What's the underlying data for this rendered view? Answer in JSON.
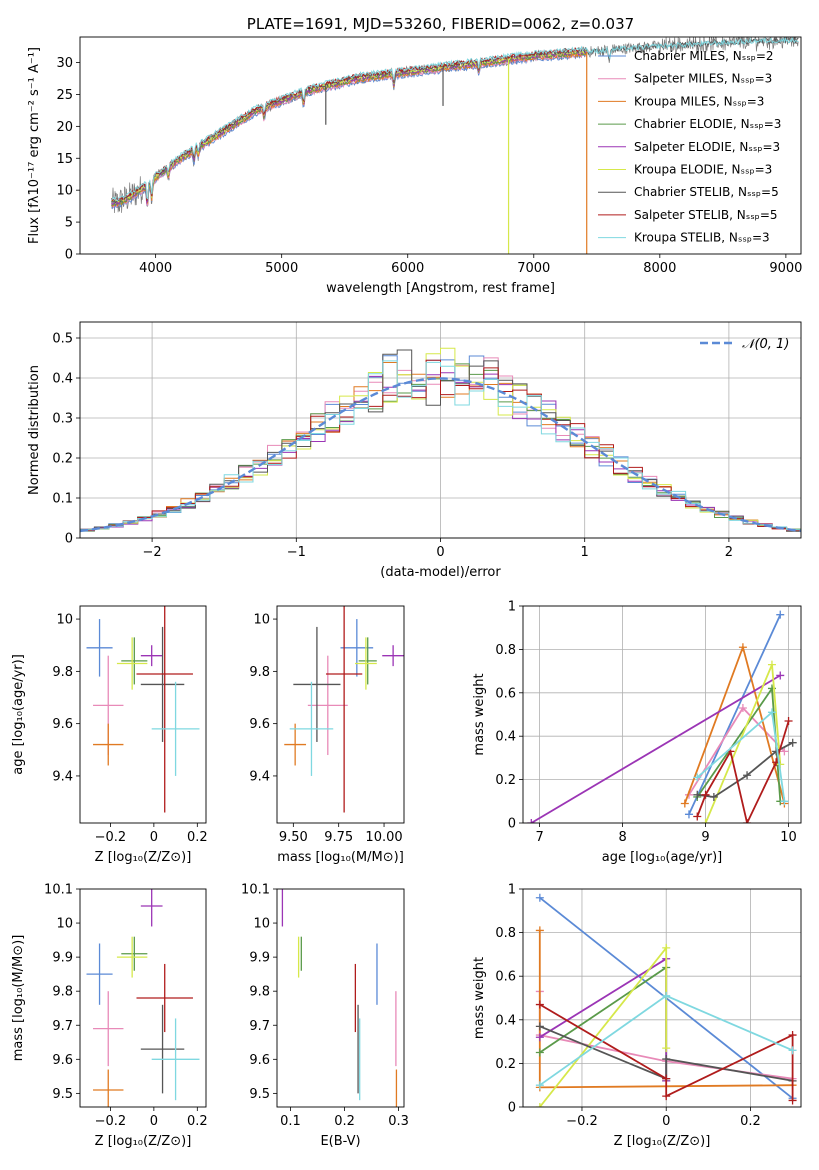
{
  "colors": {
    "chabrier_miles": "#5b8ad6",
    "salpeter_miles": "#e88ab8",
    "kroupa_miles": "#e07a22",
    "chabrier_elodie": "#5a9a4a",
    "salpeter_elodie": "#9b35b5",
    "kroupa_elodie": "#d6e84a",
    "chabrier_stelib": "#555555",
    "salpeter_stelib": "#b01c1c",
    "kroupa_stelib": "#7fd8e0"
  },
  "chart_data": [
    {
      "id": "spectrum",
      "type": "line",
      "title": "PLATE=1691, MJD=53260, FIBERID=0062, z=0.037",
      "xlabel": "wavelength [Angstrom, rest frame]",
      "ylabel": "Flux [fλ10⁻¹⁷ erg cm⁻² s⁻¹ A⁻¹]",
      "xlim": [
        3400,
        9120
      ],
      "ylim": [
        0,
        34
      ],
      "xticks": [
        4000,
        5000,
        6000,
        7000,
        8000,
        9000
      ],
      "yticks": [
        0,
        5,
        10,
        15,
        20,
        25,
        30
      ],
      "legend_position": "top-right",
      "legend": [
        {
          "label": "Chabrier MILES, Nₛₛₚ=2",
          "color_key": "chabrier_miles"
        },
        {
          "label": "Salpeter MILES, Nₛₛₚ=3",
          "color_key": "salpeter_miles"
        },
        {
          "label": "Kroupa MILES, Nₛₛₚ=3",
          "color_key": "kroupa_miles"
        },
        {
          "label": "Chabrier ELODIE, Nₛₛₚ=3",
          "color_key": "chabrier_elodie"
        },
        {
          "label": "Salpeter ELODIE, Nₛₛₚ=3",
          "color_key": "salpeter_elodie"
        },
        {
          "label": "Kroupa ELODIE, Nₛₛₚ=3",
          "color_key": "kroupa_elodie"
        },
        {
          "label": "Chabrier STELIB, Nₛₛₚ=5",
          "color_key": "chabrier_stelib"
        },
        {
          "label": "Salpeter STELIB, Nₛₛₚ=5",
          "color_key": "salpeter_stelib"
        },
        {
          "label": "Kroupa STELIB, Nₛₛₚ=3",
          "color_key": "kroupa_stelib"
        }
      ],
      "continuum": [
        [
          3700,
          8
        ],
        [
          3800,
          9
        ],
        [
          3950,
          11
        ],
        [
          4000,
          12
        ],
        [
          4200,
          15
        ],
        [
          4400,
          17.5
        ],
        [
          4600,
          20
        ],
        [
          4800,
          22.5
        ],
        [
          5000,
          24
        ],
        [
          5200,
          25.5
        ],
        [
          5400,
          26.5
        ],
        [
          5600,
          27.5
        ],
        [
          5800,
          28
        ],
        [
          6000,
          28.5
        ],
        [
          6200,
          29
        ],
        [
          6400,
          29.5
        ],
        [
          6600,
          30
        ],
        [
          6800,
          30.5
        ],
        [
          7000,
          31
        ],
        [
          7200,
          31.3
        ],
        [
          7400,
          31.6
        ],
        [
          7600,
          32
        ],
        [
          7800,
          32.3
        ],
        [
          8000,
          32.6
        ],
        [
          8200,
          32.8
        ],
        [
          8400,
          33
        ],
        [
          8600,
          33.2
        ],
        [
          8800,
          33.4
        ],
        [
          9000,
          33.5
        ]
      ],
      "data_range": [
        3650,
        9100
      ],
      "model_range": [
        3650,
        7420
      ],
      "dropouts": [
        {
          "x": 6800,
          "series": "kroupa_elodie"
        },
        {
          "x": 7420,
          "series": "kroupa_miles"
        },
        {
          "x": 5350,
          "series": "chabrier_stelib"
        },
        {
          "x": 6280,
          "series": "chabrier_stelib"
        }
      ]
    },
    {
      "id": "residuals",
      "type": "step",
      "xlabel": "(data-model)/error",
      "ylabel": "Normed distribution",
      "xlim": [
        -2.5,
        2.5
      ],
      "ylim": [
        0,
        0.54
      ],
      "xticks": [
        -2,
        -1,
        0,
        1,
        2
      ],
      "yticks": [
        0.0,
        0.1,
        0.2,
        0.3,
        0.4,
        0.5
      ],
      "grid": true,
      "bin_width": 0.1,
      "legend_position": "top-right",
      "reference": {
        "label": "𝒩(0, 1)",
        "mean": 0,
        "sigma": 1,
        "color": "#5b8ad6"
      }
    },
    {
      "id": "age_vs_Z",
      "type": "errorbar",
      "xlabel": "Z [log₁₀(Z/Z⊙)]",
      "ylabel": "age [log₁₀(age/yr)]",
      "xlim": [
        -0.34,
        0.24
      ],
      "ylim": [
        9.22,
        10.05
      ],
      "xticks": [
        -0.2,
        0.0,
        0.2
      ],
      "yticks": [
        9.4,
        9.6,
        9.8,
        10.0
      ],
      "points": [
        {
          "series": "chabrier_miles",
          "x": -0.25,
          "y": 9.89,
          "xerr": 0.06,
          "yerr": 0.11
        },
        {
          "series": "salpeter_miles",
          "x": -0.21,
          "y": 9.67,
          "xerr": 0.07,
          "yerr": 0.19
        },
        {
          "series": "kroupa_miles",
          "x": -0.21,
          "y": 9.52,
          "xerr": 0.07,
          "yerr": 0.08
        },
        {
          "series": "chabrier_elodie",
          "x": -0.09,
          "y": 9.84,
          "xerr": 0.06,
          "yerr": 0.09
        },
        {
          "series": "salpeter_elodie",
          "x": -0.01,
          "y": 9.86,
          "xerr": 0.05,
          "yerr": 0.04
        },
        {
          "series": "kroupa_elodie",
          "x": -0.1,
          "y": 9.83,
          "xerr": 0.07,
          "yerr": 0.1
        },
        {
          "series": "chabrier_stelib",
          "x": 0.04,
          "y": 9.75,
          "xerr": 0.1,
          "yerr": 0.22
        },
        {
          "series": "salpeter_stelib",
          "x": 0.05,
          "y": 9.79,
          "xerr": 0.13,
          "yerr": 0.53
        },
        {
          "series": "kroupa_stelib",
          "x": 0.1,
          "y": 9.58,
          "xerr": 0.11,
          "yerr": 0.18
        }
      ]
    },
    {
      "id": "age_vs_mass",
      "type": "errorbar",
      "xlabel": "mass [log₁₀(M/M⊙)]",
      "xlim": [
        9.41,
        10.11
      ],
      "ylim": [
        9.22,
        10.05
      ],
      "xticks": [
        9.5,
        9.75,
        10.0
      ],
      "xticklabels": [
        "9.50",
        "9.75",
        "10.00"
      ],
      "yticks": [
        9.4,
        9.6,
        9.8,
        10.0
      ],
      "points": [
        {
          "series": "chabrier_miles",
          "x": 9.85,
          "y": 9.89,
          "xerr": 0.09,
          "yerr": 0.11
        },
        {
          "series": "salpeter_miles",
          "x": 9.69,
          "y": 9.67,
          "xerr": 0.11,
          "yerr": 0.19
        },
        {
          "series": "kroupa_miles",
          "x": 9.51,
          "y": 9.52,
          "xerr": 0.06,
          "yerr": 0.08
        },
        {
          "series": "chabrier_elodie",
          "x": 9.91,
          "y": 9.84,
          "xerr": 0.05,
          "yerr": 0.09
        },
        {
          "series": "salpeter_elodie",
          "x": 10.05,
          "y": 9.86,
          "xerr": 0.06,
          "yerr": 0.04
        },
        {
          "series": "kroupa_elodie",
          "x": 9.9,
          "y": 9.83,
          "xerr": 0.06,
          "yerr": 0.1
        },
        {
          "series": "chabrier_stelib",
          "x": 9.63,
          "y": 9.75,
          "xerr": 0.13,
          "yerr": 0.22
        },
        {
          "series": "salpeter_stelib",
          "x": 9.78,
          "y": 9.79,
          "xerr": 0.1,
          "yerr": 0.53
        },
        {
          "series": "kroupa_stelib",
          "x": 9.6,
          "y": 9.58,
          "xerr": 0.12,
          "yerr": 0.18
        }
      ]
    },
    {
      "id": "weight_vs_age",
      "type": "line",
      "xlabel": "age  [log₁₀(age/yr)]",
      "ylabel": "mass weight",
      "xlim": [
        6.8,
        10.15
      ],
      "ylim": [
        0,
        1
      ],
      "xticks": [
        7,
        8,
        9,
        10
      ],
      "yticks": [
        0.0,
        0.2,
        0.4,
        0.6,
        0.8,
        1.0
      ],
      "grid": true,
      "series": [
        {
          "series": "chabrier_miles",
          "points": [
            [
              8.8,
              0.04
            ],
            [
              9.9,
              0.96
            ]
          ]
        },
        {
          "series": "salpeter_miles",
          "points": [
            [
              8.8,
              0.13
            ],
            [
              9.45,
              0.53
            ],
            [
              9.95,
              0.33
            ]
          ]
        },
        {
          "series": "kroupa_miles",
          "points": [
            [
              8.75,
              0.09
            ],
            [
              9.45,
              0.81
            ],
            [
              9.95,
              0.09
            ]
          ]
        },
        {
          "series": "chabrier_elodie",
          "points": [
            [
              8.9,
              0.12
            ],
            [
              9.8,
              0.62
            ],
            [
              9.9,
              0.1
            ]
          ]
        },
        {
          "series": "salpeter_elodie",
          "points": [
            [
              6.9,
              0.0
            ],
            [
              9.9,
              0.68
            ]
          ]
        },
        {
          "series": "kroupa_elodie",
          "points": [
            [
              9.0,
              0.0
            ],
            [
              9.8,
              0.73
            ],
            [
              9.9,
              0.27
            ]
          ]
        },
        {
          "series": "chabrier_stelib",
          "points": [
            [
              8.9,
              0.13
            ],
            [
              9.1,
              0.12
            ],
            [
              9.5,
              0.22
            ],
            [
              9.85,
              0.33
            ],
            [
              10.05,
              0.37
            ]
          ]
        },
        {
          "series": "salpeter_stelib",
          "points": [
            [
              8.9,
              0.03
            ],
            [
              9.0,
              0.13
            ],
            [
              9.3,
              0.33
            ],
            [
              9.5,
              0.0
            ],
            [
              9.85,
              0.28
            ],
            [
              10.0,
              0.47
            ]
          ]
        },
        {
          "series": "kroupa_stelib",
          "points": [
            [
              8.9,
              0.21
            ],
            [
              9.8,
              0.51
            ],
            [
              9.95,
              0.1
            ]
          ]
        }
      ]
    },
    {
      "id": "mass_vs_Z",
      "type": "errorbar",
      "xlabel": "Z [log₁₀(Z/Z⊙)]",
      "ylabel": "mass [log₁₀(M/M⊙)]",
      "xlim": [
        -0.34,
        0.24
      ],
      "ylim": [
        9.46,
        10.1
      ],
      "xticks": [
        -0.2,
        0.0,
        0.2
      ],
      "yticks": [
        9.5,
        9.6,
        9.7,
        9.8,
        9.9,
        10.0,
        10.1
      ],
      "points": [
        {
          "series": "chabrier_miles",
          "x": -0.25,
          "y": 9.85,
          "xerr": 0.06,
          "yerr": 0.09
        },
        {
          "series": "salpeter_miles",
          "x": -0.21,
          "y": 9.69,
          "xerr": 0.07,
          "yerr": 0.11
        },
        {
          "series": "kroupa_miles",
          "x": -0.21,
          "y": 9.51,
          "xerr": 0.07,
          "yerr": 0.06
        },
        {
          "series": "chabrier_elodie",
          "x": -0.09,
          "y": 9.91,
          "xerr": 0.06,
          "yerr": 0.05
        },
        {
          "series": "salpeter_elodie",
          "x": -0.01,
          "y": 10.05,
          "xerr": 0.05,
          "yerr": 0.06
        },
        {
          "series": "kroupa_elodie",
          "x": -0.1,
          "y": 9.9,
          "xerr": 0.07,
          "yerr": 0.06
        },
        {
          "series": "chabrier_stelib",
          "x": 0.04,
          "y": 9.63,
          "xerr": 0.1,
          "yerr": 0.13
        },
        {
          "series": "salpeter_stelib",
          "x": 0.05,
          "y": 9.78,
          "xerr": 0.13,
          "yerr": 0.1
        },
        {
          "series": "kroupa_stelib",
          "x": 0.1,
          "y": 9.6,
          "xerr": 0.11,
          "yerr": 0.12
        }
      ]
    },
    {
      "id": "mass_vs_ebv",
      "type": "errorbar",
      "xlabel": "E(B-V)",
      "xlim": [
        0.075,
        0.31
      ],
      "ylim": [
        9.46,
        10.1
      ],
      "xticks": [
        0.1,
        0.2,
        0.3
      ],
      "yticks": [
        9.5,
        9.6,
        9.7,
        9.8,
        9.9,
        10.0,
        10.1
      ],
      "points": [
        {
          "series": "chabrier_miles",
          "x": 0.26,
          "y": 9.85,
          "xerr": 0.0,
          "yerr": 0.09
        },
        {
          "series": "salpeter_miles",
          "x": 0.295,
          "y": 9.69,
          "xerr": 0.0,
          "yerr": 0.11
        },
        {
          "series": "kroupa_miles",
          "x": 0.296,
          "y": 9.51,
          "xerr": 0.0,
          "yerr": 0.06
        },
        {
          "series": "chabrier_elodie",
          "x": 0.12,
          "y": 9.91,
          "xerr": 0.0,
          "yerr": 0.05
        },
        {
          "series": "salpeter_elodie",
          "x": 0.085,
          "y": 10.05,
          "xerr": 0.0,
          "yerr": 0.06
        },
        {
          "series": "kroupa_elodie",
          "x": 0.115,
          "y": 9.9,
          "xerr": 0.0,
          "yerr": 0.06
        },
        {
          "series": "chabrier_stelib",
          "x": 0.225,
          "y": 9.63,
          "xerr": 0.0,
          "yerr": 0.13
        },
        {
          "series": "salpeter_stelib",
          "x": 0.22,
          "y": 9.78,
          "xerr": 0.0,
          "yerr": 0.1
        },
        {
          "series": "kroupa_stelib",
          "x": 0.228,
          "y": 9.6,
          "xerr": 0.0,
          "yerr": 0.12
        }
      ]
    },
    {
      "id": "weight_vs_Z",
      "type": "line",
      "xlabel": "Z [log₁₀(Z/Z⊙)]",
      "ylabel": "mass weight",
      "xlim": [
        -0.34,
        0.32
      ],
      "ylim": [
        0,
        1
      ],
      "xticks": [
        -0.2,
        0.0,
        0.2
      ],
      "yticks": [
        0.0,
        0.2,
        0.4,
        0.6,
        0.8,
        1.0
      ],
      "grid": true,
      "series": [
        {
          "series": "chabrier_miles",
          "points": [
            [
              -0.3,
              0.96
            ],
            [
              0.3,
              0.04
            ]
          ]
        },
        {
          "series": "salpeter_miles",
          "points": [
            [
              -0.3,
              0.53
            ],
            [
              -0.3,
              0.33
            ],
            [
              0.0,
              0.21
            ],
            [
              0.3,
              0.13
            ]
          ]
        },
        {
          "series": "kroupa_miles",
          "points": [
            [
              -0.3,
              0.81
            ],
            [
              -0.3,
              0.09
            ],
            [
              0.3,
              0.1
            ]
          ]
        },
        {
          "series": "chabrier_elodie",
          "points": [
            [
              -0.3,
              0.25
            ],
            [
              0.0,
              0.64
            ],
            [
              0.0,
              0.12
            ]
          ]
        },
        {
          "series": "salpeter_elodie",
          "points": [
            [
              -0.3,
              0.32
            ],
            [
              0.0,
              0.68
            ],
            [
              0.0,
              0.12
            ]
          ]
        },
        {
          "series": "kroupa_elodie",
          "points": [
            [
              -0.3,
              0.0
            ],
            [
              0.0,
              0.73
            ],
            [
              0.0,
              0.27
            ]
          ]
        },
        {
          "series": "chabrier_stelib",
          "points": [
            [
              -0.3,
              0.37
            ],
            [
              0.0,
              0.13
            ],
            [
              0.0,
              0.22
            ],
            [
              0.3,
              0.12
            ]
          ]
        },
        {
          "series": "salpeter_stelib",
          "points": [
            [
              -0.3,
              0.47
            ],
            [
              0.0,
              0.13
            ],
            [
              0.0,
              0.05
            ],
            [
              0.3,
              0.33
            ],
            [
              0.3,
              0.03
            ]
          ]
        },
        {
          "series": "kroupa_stelib",
          "points": [
            [
              -0.3,
              0.1
            ],
            [
              0.0,
              0.51
            ],
            [
              0.3,
              0.26
            ]
          ]
        }
      ]
    }
  ]
}
